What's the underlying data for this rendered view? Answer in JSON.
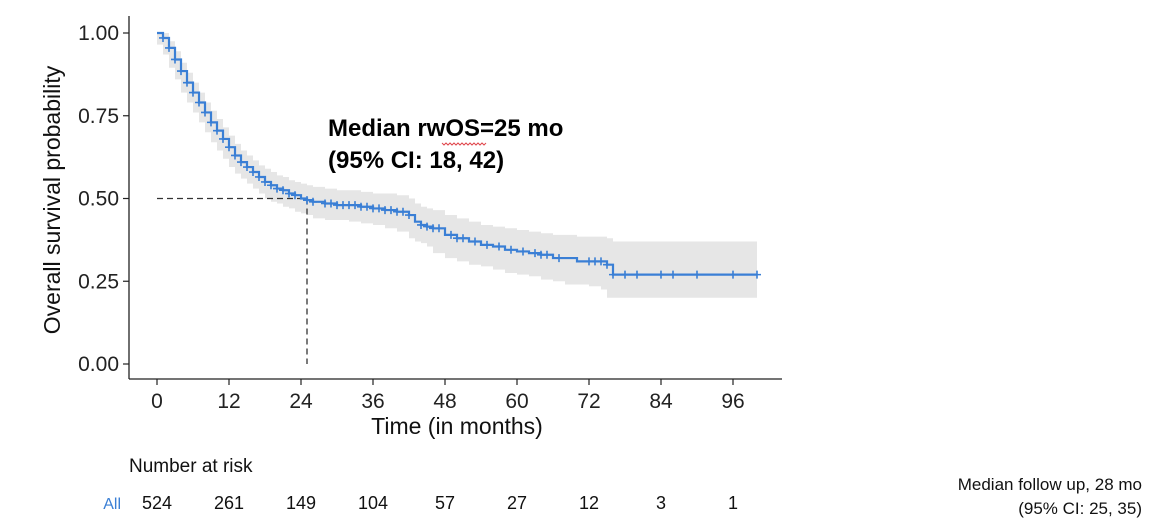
{
  "chart_data": {
    "type": "line",
    "subtype": "kaplan-meier",
    "xlabel": "Time (in months)",
    "ylabel": "Overall survival probability",
    "xlim": [
      0,
      100
    ],
    "ylim": [
      0,
      1
    ],
    "x_ticks": [
      0,
      12,
      24,
      36,
      48,
      60,
      72,
      84,
      96
    ],
    "y_ticks": [
      "0.00",
      "0.25",
      "0.50",
      "0.75",
      "1.00"
    ],
    "grid": false,
    "colors": {
      "curve": "#3a7fd5",
      "ci_band": "#e6e6e6",
      "reference": "#333333"
    },
    "series": [
      {
        "name": "All",
        "x": [
          0,
          1,
          2,
          3,
          4,
          5,
          6,
          7,
          8,
          9,
          10,
          11,
          12,
          13,
          14,
          15,
          16,
          17,
          18,
          19,
          20,
          21,
          22,
          23,
          24,
          25,
          26,
          28,
          30,
          32,
          34,
          36,
          38,
          40,
          42,
          43,
          44,
          45,
          46,
          48,
          50,
          52,
          54,
          56,
          58,
          60,
          62,
          64,
          66,
          68,
          70,
          72,
          74,
          75,
          76,
          80,
          84,
          90,
          96,
          100
        ],
        "y": [
          1.0,
          0.985,
          0.955,
          0.92,
          0.885,
          0.85,
          0.82,
          0.79,
          0.76,
          0.73,
          0.705,
          0.68,
          0.655,
          0.63,
          0.61,
          0.595,
          0.58,
          0.565,
          0.55,
          0.54,
          0.53,
          0.525,
          0.515,
          0.51,
          0.5,
          0.495,
          0.49,
          0.485,
          0.48,
          0.48,
          0.475,
          0.47,
          0.465,
          0.46,
          0.45,
          0.43,
          0.42,
          0.415,
          0.41,
          0.39,
          0.38,
          0.37,
          0.36,
          0.355,
          0.345,
          0.34,
          0.335,
          0.33,
          0.32,
          0.32,
          0.31,
          0.31,
          0.31,
          0.3,
          0.27,
          0.27,
          0.27,
          0.27,
          0.27,
          0.27
        ],
        "ci_upper": [
          1.0,
          1.0,
          0.975,
          0.945,
          0.91,
          0.88,
          0.85,
          0.82,
          0.79,
          0.765,
          0.74,
          0.715,
          0.69,
          0.665,
          0.645,
          0.63,
          0.615,
          0.6,
          0.59,
          0.58,
          0.57,
          0.565,
          0.555,
          0.55,
          0.545,
          0.54,
          0.535,
          0.53,
          0.525,
          0.525,
          0.52,
          0.515,
          0.515,
          0.51,
          0.5,
          0.485,
          0.475,
          0.47,
          0.465,
          0.45,
          0.44,
          0.43,
          0.42,
          0.415,
          0.41,
          0.405,
          0.4,
          0.395,
          0.39,
          0.39,
          0.385,
          0.385,
          0.385,
          0.38,
          0.37,
          0.37,
          0.37,
          0.37,
          0.37,
          0.37
        ],
        "ci_lower": [
          1.0,
          0.965,
          0.935,
          0.895,
          0.86,
          0.82,
          0.79,
          0.76,
          0.73,
          0.7,
          0.67,
          0.645,
          0.62,
          0.595,
          0.575,
          0.56,
          0.545,
          0.53,
          0.515,
          0.5,
          0.49,
          0.485,
          0.475,
          0.47,
          0.46,
          0.455,
          0.45,
          0.44,
          0.435,
          0.435,
          0.43,
          0.425,
          0.42,
          0.41,
          0.4,
          0.38,
          0.37,
          0.365,
          0.355,
          0.335,
          0.32,
          0.31,
          0.3,
          0.295,
          0.285,
          0.275,
          0.27,
          0.265,
          0.255,
          0.25,
          0.24,
          0.24,
          0.235,
          0.225,
          0.2,
          0.2,
          0.2,
          0.2,
          0.2,
          0.2
        ],
        "censor_x": [
          1,
          2,
          3,
          4,
          5,
          6,
          7,
          8,
          9,
          10,
          11,
          12,
          13,
          14,
          15,
          16,
          17,
          18,
          19,
          20,
          21,
          22,
          23,
          25,
          26,
          28,
          29,
          30,
          31,
          32,
          33,
          34,
          35,
          36,
          37,
          38,
          39,
          40,
          41,
          42,
          44,
          45,
          46,
          47,
          49,
          50,
          51,
          53,
          55,
          57,
          59,
          61,
          63,
          64,
          65,
          67,
          72,
          73,
          74,
          75,
          76,
          78,
          80,
          84,
          86,
          90,
          96,
          100
        ]
      }
    ],
    "median": {
      "x": 25,
      "y": 0.5
    },
    "annotations": [
      "Median rwOS=25 mo",
      "(95% CI: 18, 42)"
    ],
    "risk_table": {
      "title": "Number at risk",
      "strata": [
        {
          "label": "All",
          "values": [
            "524",
            "261",
            "149",
            "104",
            "57",
            "27",
            "12",
            "3",
            "1"
          ]
        }
      ]
    },
    "footnote": [
      "Median follow up, 28 mo",
      "(95% CI: 25, 35)"
    ]
  }
}
